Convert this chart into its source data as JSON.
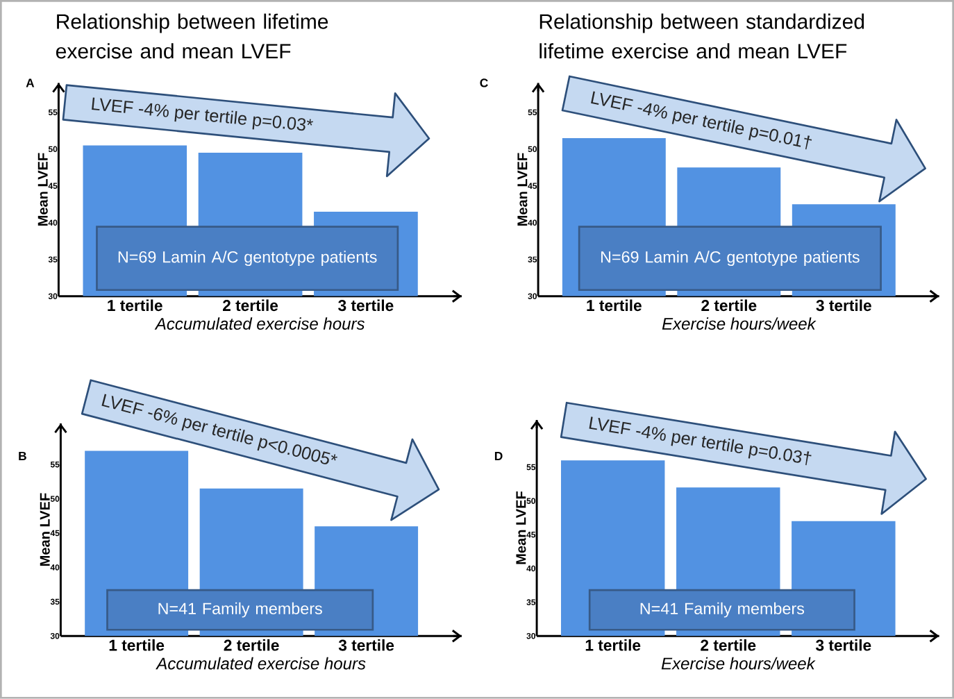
{
  "chart_data": [
    {
      "type": "bar",
      "title": "Relationship between lifetime exercise and mean LVEF",
      "categories": [
        "1 tertile",
        "2 tertile",
        "3 tertile"
      ],
      "values": [
        50.5,
        49.5,
        41.5
      ],
      "color": "#5292e2",
      "xlabel": "Accumulated exercise hours",
      "ylabel": "Mean LVEF",
      "ylim": [
        30,
        59
      ],
      "yticks": [
        30,
        35,
        40,
        45,
        50,
        55
      ],
      "annotations": [
        "A",
        "LVEF -4% per tertile p=0.03*",
        "N=69 Lamin A/C gentotype patients"
      ]
    },
    {
      "type": "bar",
      "title": "Relationship between standardized lifetime exercise and mean LVEF",
      "categories": [
        "1 tertile",
        "2 tertile",
        "3 tertile"
      ],
      "values": [
        51.5,
        47.5,
        42.5
      ],
      "color": "#5292e2",
      "xlabel": "Exercise hours/week",
      "ylabel": "Mean LVEF",
      "ylim": [
        30,
        59
      ],
      "yticks": [
        30,
        35,
        40,
        45,
        50,
        55
      ],
      "annotations": [
        "C",
        "LVEF -4% per tertile p=0.01†",
        "N=69 Lamin A/C gentotype patients"
      ]
    },
    {
      "type": "bar",
      "categories": [
        "1 tertile",
        "2 tertile",
        "3 tertile"
      ],
      "values": [
        57,
        51.5,
        46
      ],
      "color": "#5292e2",
      "xlabel": "Accumulated exercise hours",
      "ylabel": "Mean LVEF",
      "ylim": [
        30,
        61
      ],
      "yticks": [
        30,
        35,
        40,
        45,
        50,
        55
      ],
      "annotations": [
        "B",
        "LVEF -6% per tertile p<0.0005*",
        "N=41 Family members"
      ]
    },
    {
      "type": "bar",
      "categories": [
        "1 tertile",
        "2 tertile",
        "3 tertile"
      ],
      "values": [
        56,
        52,
        47
      ],
      "color": "#5292e2",
      "xlabel": "Exercise hours/week",
      "ylabel": "Mean LVEF",
      "ylim": [
        30,
        62
      ],
      "yticks": [
        30,
        35,
        40,
        45,
        50,
        55
      ],
      "annotations": [
        "D",
        "LVEF -4% per tertile p=0.03†",
        "N=41 Family members"
      ]
    }
  ]
}
